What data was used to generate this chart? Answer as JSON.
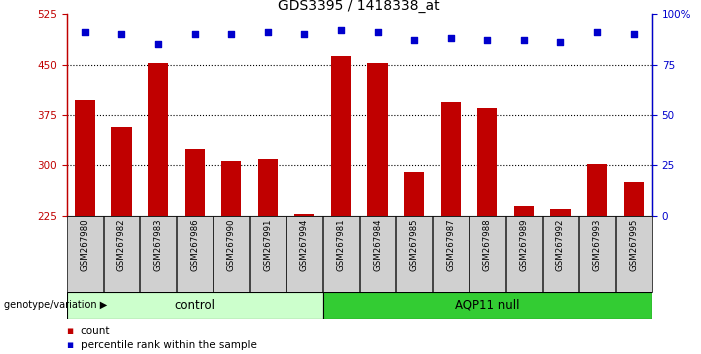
{
  "title": "GDS3395 / 1418338_at",
  "samples": [
    "GSM267980",
    "GSM267982",
    "GSM267983",
    "GSM267986",
    "GSM267990",
    "GSM267991",
    "GSM267994",
    "GSM267981",
    "GSM267984",
    "GSM267985",
    "GSM267987",
    "GSM267988",
    "GSM267989",
    "GSM267992",
    "GSM267993",
    "GSM267995"
  ],
  "bar_values": [
    397,
    357,
    452,
    325,
    307,
    309,
    228,
    463,
    452,
    291,
    395,
    385,
    240,
    236,
    302,
    276
  ],
  "percentile_values": [
    91,
    90,
    85,
    90,
    90,
    91,
    90,
    92,
    91,
    87,
    88,
    87,
    87,
    86,
    91,
    90
  ],
  "bar_color": "#c00000",
  "percentile_color": "#0000cc",
  "ylim_left": [
    225,
    525
  ],
  "ylim_right": [
    0,
    100
  ],
  "yticks_left": [
    225,
    300,
    375,
    450,
    525
  ],
  "yticks_right": [
    0,
    25,
    50,
    75,
    100
  ],
  "ytick_labels_right": [
    "0",
    "25",
    "50",
    "75",
    "100%"
  ],
  "grid_values": [
    300,
    375,
    450
  ],
  "control_samples": 7,
  "control_label": "control",
  "aqp11_label": "AQP11 null",
  "control_color": "#ccffcc",
  "aqp11_color": "#33cc33",
  "genotype_label": "genotype/variation",
  "legend_count": "count",
  "legend_percentile": "percentile rank within the sample",
  "xlabel_area_color": "#d0d0d0",
  "title_fontsize": 10,
  "tick_fontsize": 7.5,
  "bar_width": 0.55
}
